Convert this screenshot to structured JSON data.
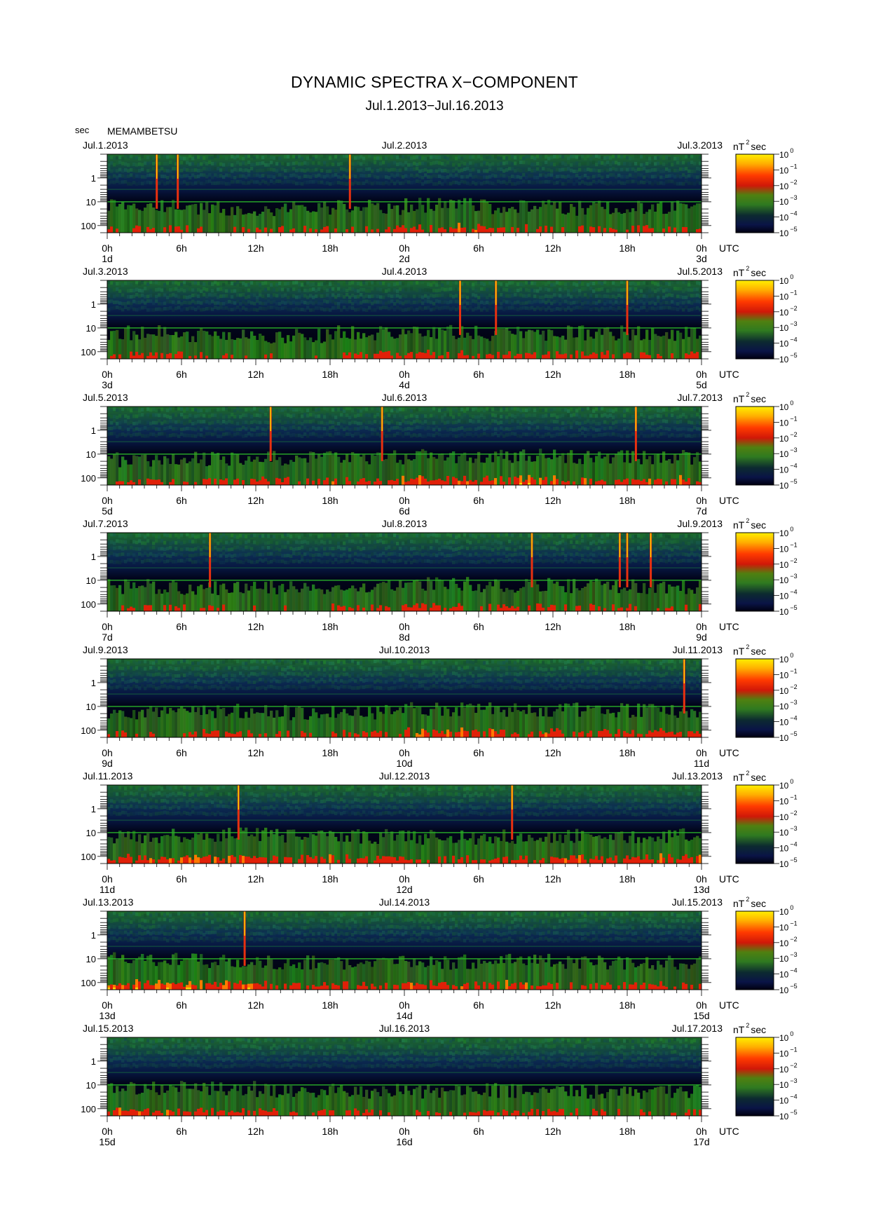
{
  "header": {
    "title": "DYNAMIC SPECTRA X−COMPONENT",
    "subtitle": "Jul.1.2013−Jul.16.2013",
    "unit_sec": "sec",
    "station": "MEMAMBETSU"
  },
  "colors": {
    "background_dark": "#000010",
    "low_power": "#0a1450",
    "mid_power": "#2e7d1e",
    "high_power": "#ff2000",
    "peak_power": "#ffe600"
  },
  "chart_data": {
    "type": "heatmap",
    "component": "X",
    "y_axis": {
      "label": "sec",
      "scale": "log",
      "range": [
        0.1,
        200
      ],
      "tick_labels": [
        "1",
        "10",
        "100"
      ],
      "tick_values": [
        1,
        10,
        100
      ]
    },
    "x_axis": {
      "label": "UTC",
      "hour_labels": [
        "0h",
        "6h",
        "12h",
        "18h",
        "0h",
        "6h",
        "12h",
        "18h",
        "0h"
      ],
      "hours": [
        0,
        6,
        12,
        18,
        24,
        30,
        36,
        42,
        48
      ]
    },
    "colorbar": {
      "unit_label": "nT",
      "unit_superscript": "2",
      "unit_suffix": "sec",
      "scale": "log",
      "range": [
        1e-05,
        1
      ],
      "tick_labels": [
        {
          "base": "10",
          "exp": "0"
        },
        {
          "base": "10",
          "exp": "−1"
        },
        {
          "base": "10",
          "exp": "−2"
        },
        {
          "base": "10",
          "exp": "−3"
        },
        {
          "base": "10",
          "exp": "−4"
        },
        {
          "base": "10",
          "exp": "−5"
        }
      ],
      "colors": [
        "#ffe600",
        "#ff8000",
        "#ff2000",
        "#c03010",
        "#2e7d1e",
        "#0a1450"
      ]
    },
    "panels": [
      {
        "date_left": "Jul.1.2013",
        "date_mid": "Jul.2.2013",
        "date_right": "Jul.3.2013",
        "day_labels": [
          "1d",
          "2d",
          "3d"
        ],
        "bursts": [
          4.0,
          5.7,
          19.6
        ],
        "activity": [
          0.5,
          0.4,
          0.35,
          0.45,
          0.6,
          0.5,
          0.4,
          0.5
        ]
      },
      {
        "date_left": "Jul.3.2013",
        "date_mid": "Jul.4.2013",
        "date_right": "Jul.5.2013",
        "day_labels": [
          "3d",
          "4d",
          "5d"
        ],
        "bursts": [
          28.5,
          31.4,
          42.0
        ],
        "activity": [
          0.5,
          0.35,
          0.3,
          0.5,
          0.55,
          0.45,
          0.5,
          0.45
        ]
      },
      {
        "date_left": "Jul.5.2013",
        "date_mid": "Jul.6.2013",
        "date_right": "Jul.7.2013",
        "day_labels": [
          "5d",
          "6d",
          "7d"
        ],
        "bursts": [
          13.2,
          22.2,
          42.7
        ],
        "activity": [
          0.45,
          0.5,
          0.55,
          0.6,
          0.7,
          0.7,
          0.65,
          0.6
        ]
      },
      {
        "date_left": "Jul.7.2013",
        "date_mid": "Jul.8.2013",
        "date_right": "Jul.9.2013",
        "day_labels": [
          "7d",
          "8d",
          "9d"
        ],
        "bursts": [
          8.3,
          34.3,
          41.4,
          42.0,
          43.9
        ],
        "activity": [
          0.4,
          0.35,
          0.3,
          0.45,
          0.55,
          0.5,
          0.45,
          0.4
        ]
      },
      {
        "date_left": "Jul.9.2013",
        "date_mid": "Jul.10.2013",
        "date_right": "Jul.11.2013",
        "day_labels": [
          "9d",
          "10d",
          "11d"
        ],
        "bursts": [
          46.6
        ],
        "activity": [
          0.4,
          0.5,
          0.4,
          0.45,
          0.65,
          0.6,
          0.6,
          0.55
        ]
      },
      {
        "date_left": "Jul.11.2013",
        "date_mid": "Jul.12.2013",
        "date_right": "Jul.13.2013",
        "day_labels": [
          "11d",
          "12d",
          "13d"
        ],
        "bursts": [
          10.6,
          32.7
        ],
        "activity": [
          0.6,
          0.7,
          0.65,
          0.55,
          0.5,
          0.55,
          0.6,
          0.6
        ]
      },
      {
        "date_left": "Jul.13.2013",
        "date_mid": "Jul.14.2013",
        "date_right": "Jul.15.2013",
        "day_labels": [
          "13d",
          "14d",
          "15d"
        ],
        "bursts": [
          11.1
        ],
        "activity": [
          0.75,
          0.7,
          0.55,
          0.55,
          0.6,
          0.65,
          0.55,
          0.55
        ]
      },
      {
        "date_left": "Jul.15.2013",
        "date_mid": "Jul.16.2013",
        "date_right": "Jul.17.2013",
        "day_labels": [
          "15d",
          "16d",
          "17d"
        ],
        "bursts": [],
        "activity": [
          0.65,
          0.6,
          0.45,
          0.4,
          0.4,
          0.45,
          0.4,
          0.4
        ]
      }
    ]
  }
}
